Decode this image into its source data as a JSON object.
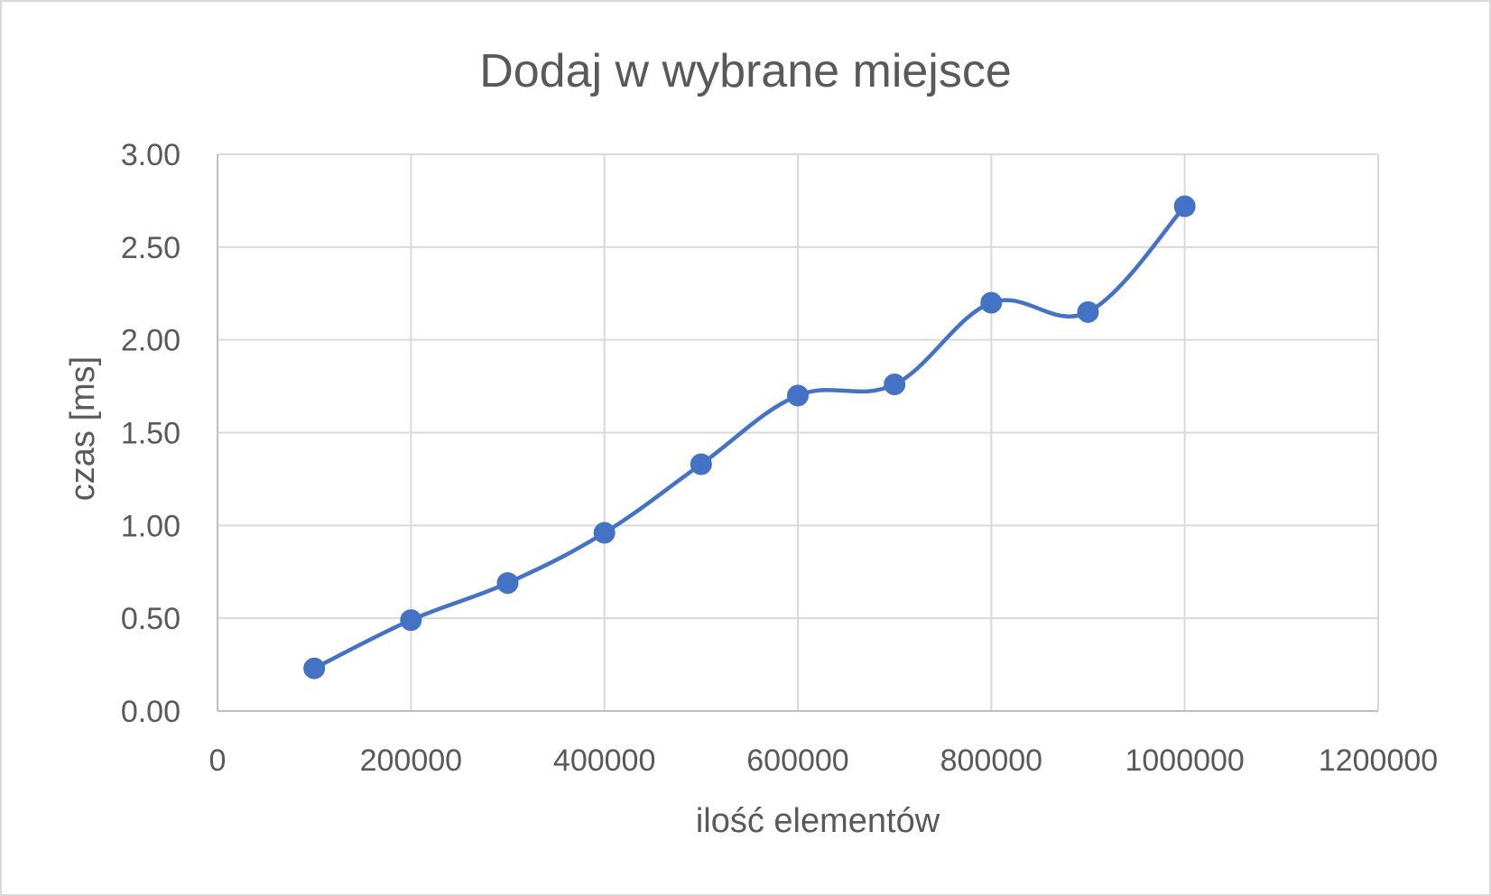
{
  "chart_data": {
    "type": "scatter",
    "title": "Dodaj w wybrane miejsce",
    "xlabel": "ilość elementów",
    "ylabel": "czas [ms]",
    "xlim": [
      0,
      1200000
    ],
    "ylim": [
      0,
      3
    ],
    "x_ticks": [
      "0",
      "200000",
      "400000",
      "600000",
      "800000",
      "1000000",
      "1200000"
    ],
    "y_ticks": [
      "0.00",
      "0.50",
      "1.00",
      "1.50",
      "2.00",
      "2.50",
      "3.00"
    ],
    "x_tick_values": [
      0,
      200000,
      400000,
      600000,
      800000,
      1000000,
      1200000
    ],
    "y_tick_values": [
      0,
      0.5,
      1,
      1.5,
      2,
      2.5,
      3
    ],
    "grid": true,
    "legend": "none",
    "line_style": "smooth",
    "series": [
      {
        "color": "#4472c4",
        "points": [
          {
            "x": 100000,
            "y": 0.23
          },
          {
            "x": 200000,
            "y": 0.49
          },
          {
            "x": 300000,
            "y": 0.69
          },
          {
            "x": 400000,
            "y": 0.96
          },
          {
            "x": 500000,
            "y": 1.33
          },
          {
            "x": 600000,
            "y": 1.7
          },
          {
            "x": 700000,
            "y": 1.76
          },
          {
            "x": 800000,
            "y": 2.2
          },
          {
            "x": 900000,
            "y": 2.15
          },
          {
            "x": 1000000,
            "y": 2.72
          }
        ]
      }
    ]
  }
}
